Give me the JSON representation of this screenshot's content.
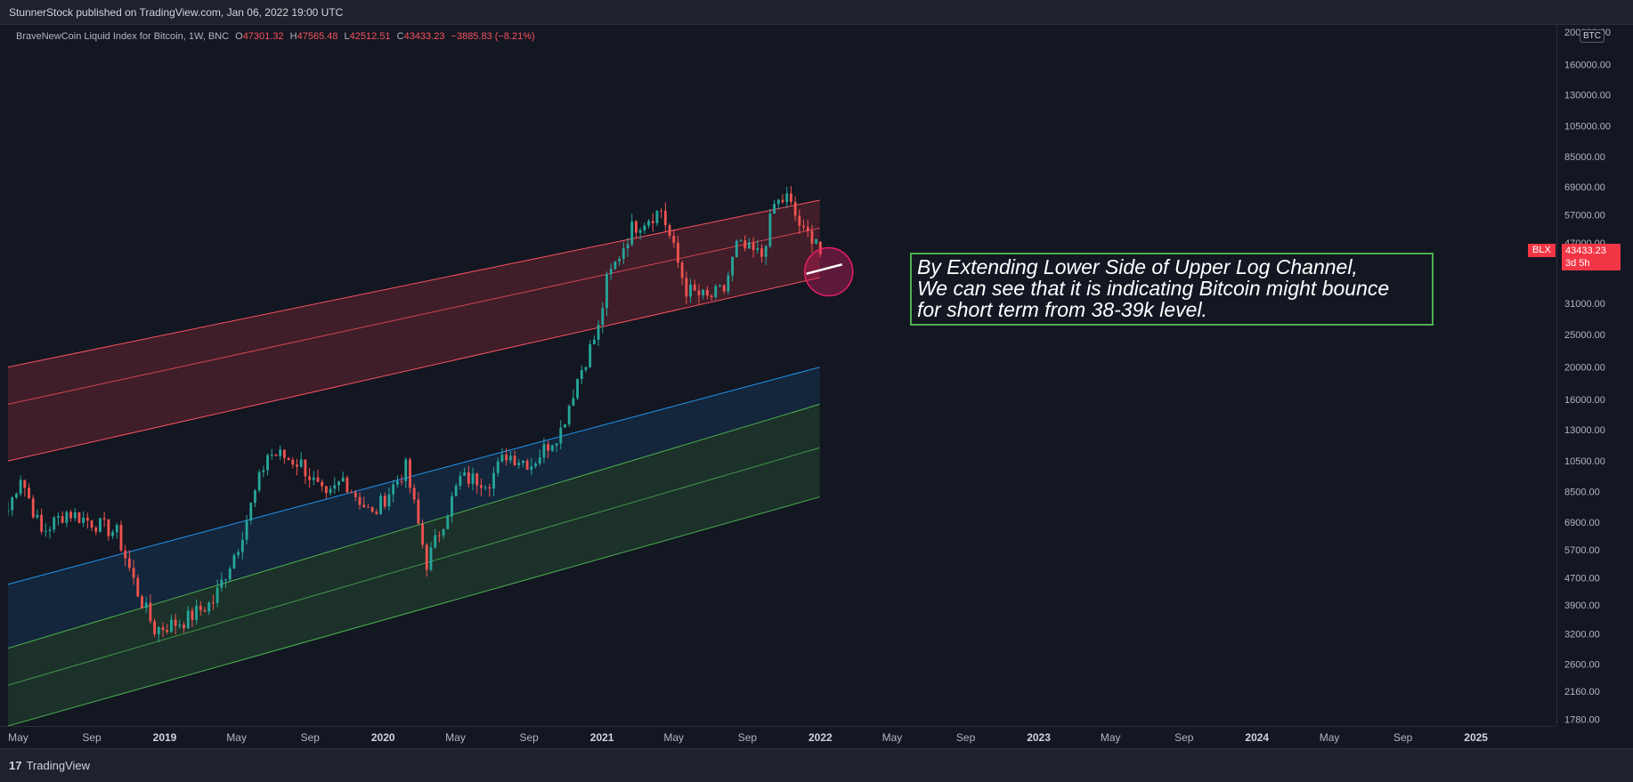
{
  "header": {
    "published": "StunnerStock published on TradingView.com, Jan 06, 2022 19:00 UTC"
  },
  "legend": {
    "symbol": "BraveNewCoin Liquid Index for Bitcoin, 1W, BNC",
    "open_label": "O",
    "open": "47301.32",
    "high_label": "H",
    "high": "47565.48",
    "low_label": "L",
    "low": "42512.51",
    "close_label": "C",
    "close": "43433.23",
    "change": "−3885.83 (−8.21%)"
  },
  "price_axis": {
    "currency": "BTC",
    "ticks": [
      "200000.00",
      "160000.00",
      "130000.00",
      "105000.00",
      "85000.00",
      "69000.00",
      "57000.00",
      "47000.00",
      "31000.00",
      "25000.00",
      "20000.00",
      "16000.00",
      "13000.00",
      "10500.00",
      "8500.00",
      "6900.00",
      "5700.00",
      "4700.00",
      "3900.00",
      "3200.00",
      "2600.00",
      "2160.00",
      "1780.00"
    ],
    "symbol_tag": "BLX",
    "last_price": "43433.23",
    "countdown": "3d 5h"
  },
  "time_axis": {
    "labels": [
      "May",
      "Sep",
      "2019",
      "May",
      "Sep",
      "2020",
      "May",
      "Sep",
      "2021",
      "May",
      "Sep",
      "2022",
      "May",
      "Sep",
      "2023",
      "May",
      "Sep",
      "2024",
      "May",
      "Sep",
      "2025"
    ],
    "bold": [
      "2019",
      "2020",
      "2021",
      "2022",
      "2023",
      "2024",
      "2025"
    ]
  },
  "annotation": {
    "line1": "By Extending Lower Side of Upper Log Channel,",
    "line2": "We can see that it is indicating Bitcoin might bounce",
    "line3": "for short term from 38-39k level."
  },
  "footer": {
    "brand": "TradingView",
    "logo_glyph": "17"
  },
  "colors": {
    "background": "#131722",
    "up": "#26a69a",
    "down": "#ef5350",
    "red_channel": "#f7525f",
    "blue_channel": "#2196f3",
    "green_channel": "#4caf50",
    "annotation_border": "#4caf50",
    "circle": "#e91e63"
  },
  "chart_data": {
    "type": "candlestick",
    "title": "BraveNewCoin Liquid Index for Bitcoin, 1W, BNC",
    "scale": "log",
    "ylim": [
      1700,
      210000
    ],
    "x_range": [
      "2018-04-14",
      "2025-05-14"
    ],
    "price_path": [
      [
        "2018-04-14",
        7500
      ],
      [
        "2018-05-05",
        9500
      ],
      [
        "2018-06-09",
        6400
      ],
      [
        "2018-07-21",
        7400
      ],
      [
        "2018-09-01",
        6900
      ],
      [
        "2018-10-13",
        6400
      ],
      [
        "2018-11-18",
        4200
      ],
      [
        "2018-12-15",
        3300
      ],
      [
        "2019-02-02",
        3500
      ],
      [
        "2019-03-23",
        4000
      ],
      [
        "2019-05-04",
        5900
      ],
      [
        "2019-06-22",
        11000
      ],
      [
        "2019-07-13",
        10900
      ],
      [
        "2019-08-17",
        10300
      ],
      [
        "2019-09-28",
        8000
      ],
      [
        "2019-10-26",
        9300
      ],
      [
        "2019-12-14",
        7200
      ],
      [
        "2020-02-08",
        10000
      ],
      [
        "2020-03-14",
        5200
      ],
      [
        "2020-05-09",
        9300
      ],
      [
        "2020-06-27",
        9200
      ],
      [
        "2020-07-25",
        11000
      ],
      [
        "2020-09-05",
        10300
      ],
      [
        "2020-10-24",
        13000
      ],
      [
        "2020-11-21",
        18500
      ],
      [
        "2020-12-26",
        26000
      ],
      [
        "2021-01-09",
        36000
      ],
      [
        "2021-02-20",
        52000
      ],
      [
        "2021-04-10",
        59000
      ],
      [
        "2021-05-22",
        34000
      ],
      [
        "2021-06-26",
        32000
      ],
      [
        "2021-07-24",
        34000
      ],
      [
        "2021-08-14",
        46000
      ],
      [
        "2021-09-25",
        43000
      ],
      [
        "2021-10-16",
        61000
      ],
      [
        "2021-11-06",
        64000
      ],
      [
        "2021-12-04",
        50000
      ],
      [
        "2021-12-25",
        49000
      ],
      [
        "2022-01-06",
        43433.23
      ]
    ],
    "last_candle": {
      "open": 47301.32,
      "high": 47565.48,
      "low": 42512.51,
      "close": 43433.23
    },
    "channels": [
      {
        "color": "red",
        "lines": [
          [
            [
              "2018-04-14",
              20000
            ],
            [
              "2021-12-31",
              63000
            ]
          ],
          [
            [
              "2018-04-14",
              15500
            ],
            [
              "2021-12-31",
              52000
            ]
          ],
          [
            [
              "2018-04-14",
              10500
            ],
            [
              "2021-12-31",
              37000
            ]
          ]
        ]
      },
      {
        "color": "blue",
        "lines": [
          [
            [
              "2018-04-14",
              4500
            ],
            [
              "2021-12-31",
              20000
            ]
          ]
        ]
      },
      {
        "color": "green",
        "lines": [
          [
            [
              "2018-04-14",
              2900
            ],
            [
              "2021-12-31",
              15500
            ]
          ],
          [
            [
              "2018-04-14",
              2250
            ],
            [
              "2021-12-31",
              11500
            ]
          ],
          [
            [
              "2018-04-14",
              1700
            ],
            [
              "2021-12-31",
              8200
            ]
          ]
        ]
      }
    ],
    "bounce_zone": {
      "from": 38000,
      "to": 39000
    }
  }
}
